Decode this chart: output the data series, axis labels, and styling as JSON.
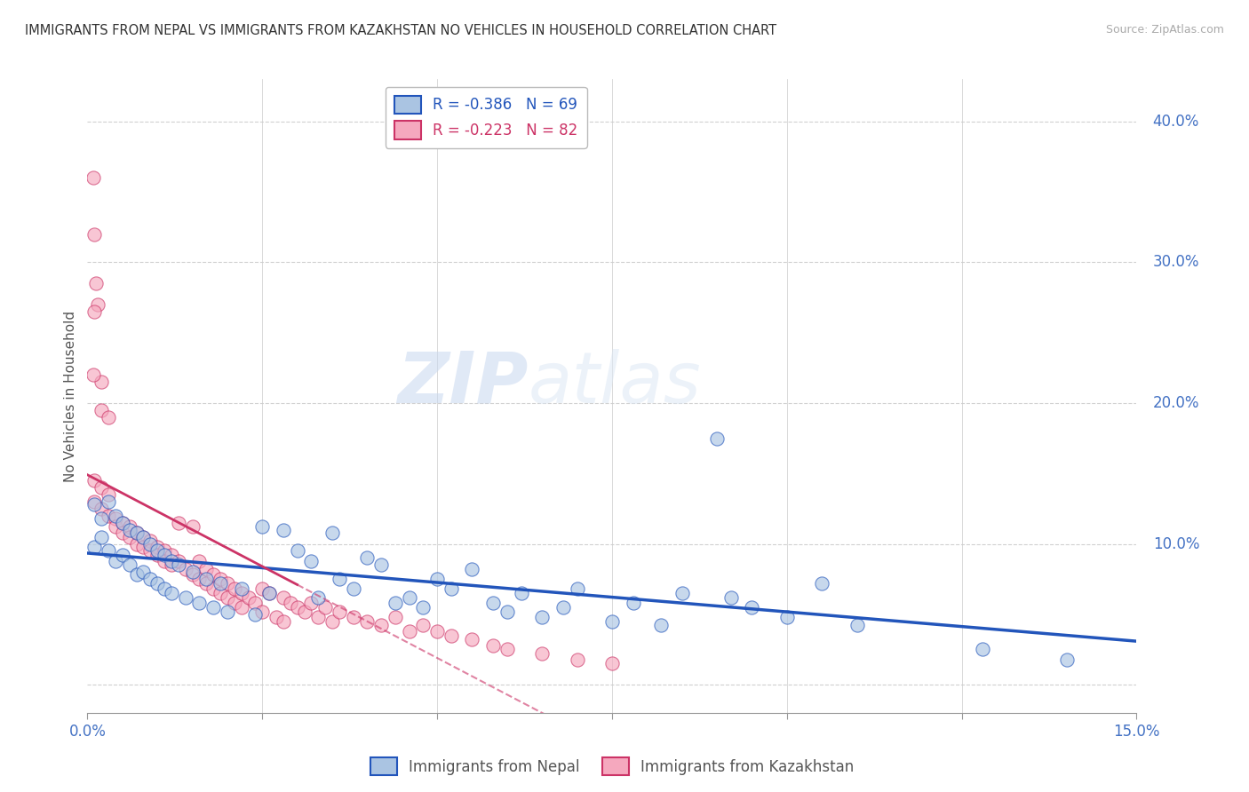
{
  "title": "IMMIGRANTS FROM NEPAL VS IMMIGRANTS FROM KAZAKHSTAN NO VEHICLES IN HOUSEHOLD CORRELATION CHART",
  "source": "Source: ZipAtlas.com",
  "ylabel": "No Vehicles in Household",
  "right_yticklabels": [
    "",
    "10.0%",
    "20.0%",
    "30.0%",
    "40.0%"
  ],
  "right_ytick_vals": [
    0.0,
    0.1,
    0.2,
    0.3,
    0.4
  ],
  "xmin": 0.0,
  "xmax": 0.15,
  "ymin": -0.02,
  "ymax": 0.43,
  "nepal_R": -0.386,
  "nepal_N": 69,
  "kazakh_R": -0.223,
  "kazakh_N": 82,
  "nepal_color": "#aac4e2",
  "kazakh_color": "#f5a8be",
  "nepal_line_color": "#2255bb",
  "kazakh_line_color": "#cc3366",
  "nepal_scatter": [
    [
      0.001,
      0.128
    ],
    [
      0.001,
      0.098
    ],
    [
      0.002,
      0.118
    ],
    [
      0.002,
      0.105
    ],
    [
      0.003,
      0.13
    ],
    [
      0.003,
      0.095
    ],
    [
      0.004,
      0.12
    ],
    [
      0.004,
      0.088
    ],
    [
      0.005,
      0.115
    ],
    [
      0.005,
      0.092
    ],
    [
      0.006,
      0.11
    ],
    [
      0.006,
      0.085
    ],
    [
      0.007,
      0.108
    ],
    [
      0.007,
      0.078
    ],
    [
      0.008,
      0.105
    ],
    [
      0.008,
      0.08
    ],
    [
      0.009,
      0.1
    ],
    [
      0.009,
      0.075
    ],
    [
      0.01,
      0.095
    ],
    [
      0.01,
      0.072
    ],
    [
      0.011,
      0.092
    ],
    [
      0.011,
      0.068
    ],
    [
      0.012,
      0.088
    ],
    [
      0.012,
      0.065
    ],
    [
      0.013,
      0.085
    ],
    [
      0.014,
      0.062
    ],
    [
      0.015,
      0.08
    ],
    [
      0.016,
      0.058
    ],
    [
      0.017,
      0.075
    ],
    [
      0.018,
      0.055
    ],
    [
      0.019,
      0.072
    ],
    [
      0.02,
      0.052
    ],
    [
      0.022,
      0.068
    ],
    [
      0.024,
      0.05
    ],
    [
      0.025,
      0.112
    ],
    [
      0.026,
      0.065
    ],
    [
      0.028,
      0.11
    ],
    [
      0.03,
      0.095
    ],
    [
      0.032,
      0.088
    ],
    [
      0.033,
      0.062
    ],
    [
      0.035,
      0.108
    ],
    [
      0.036,
      0.075
    ],
    [
      0.038,
      0.068
    ],
    [
      0.04,
      0.09
    ],
    [
      0.042,
      0.085
    ],
    [
      0.044,
      0.058
    ],
    [
      0.046,
      0.062
    ],
    [
      0.048,
      0.055
    ],
    [
      0.05,
      0.075
    ],
    [
      0.052,
      0.068
    ],
    [
      0.055,
      0.082
    ],
    [
      0.058,
      0.058
    ],
    [
      0.06,
      0.052
    ],
    [
      0.062,
      0.065
    ],
    [
      0.065,
      0.048
    ],
    [
      0.068,
      0.055
    ],
    [
      0.07,
      0.068
    ],
    [
      0.075,
      0.045
    ],
    [
      0.078,
      0.058
    ],
    [
      0.082,
      0.042
    ],
    [
      0.085,
      0.065
    ],
    [
      0.09,
      0.175
    ],
    [
      0.092,
      0.062
    ],
    [
      0.095,
      0.055
    ],
    [
      0.1,
      0.048
    ],
    [
      0.105,
      0.072
    ],
    [
      0.11,
      0.042
    ],
    [
      0.128,
      0.025
    ],
    [
      0.14,
      0.018
    ]
  ],
  "kazakh_scatter": [
    [
      0.0008,
      0.36
    ],
    [
      0.001,
      0.32
    ],
    [
      0.0012,
      0.285
    ],
    [
      0.0015,
      0.27
    ],
    [
      0.001,
      0.265
    ],
    [
      0.002,
      0.215
    ],
    [
      0.002,
      0.195
    ],
    [
      0.0008,
      0.22
    ],
    [
      0.003,
      0.19
    ],
    [
      0.001,
      0.145
    ],
    [
      0.002,
      0.14
    ],
    [
      0.003,
      0.135
    ],
    [
      0.001,
      0.13
    ],
    [
      0.002,
      0.125
    ],
    [
      0.003,
      0.12
    ],
    [
      0.004,
      0.118
    ],
    [
      0.004,
      0.112
    ],
    [
      0.005,
      0.115
    ],
    [
      0.005,
      0.108
    ],
    [
      0.006,
      0.112
    ],
    [
      0.006,
      0.105
    ],
    [
      0.007,
      0.108
    ],
    [
      0.007,
      0.1
    ],
    [
      0.008,
      0.105
    ],
    [
      0.008,
      0.098
    ],
    [
      0.009,
      0.102
    ],
    [
      0.009,
      0.095
    ],
    [
      0.01,
      0.098
    ],
    [
      0.01,
      0.092
    ],
    [
      0.011,
      0.095
    ],
    [
      0.011,
      0.088
    ],
    [
      0.012,
      0.092
    ],
    [
      0.012,
      0.085
    ],
    [
      0.013,
      0.115
    ],
    [
      0.013,
      0.088
    ],
    [
      0.014,
      0.082
    ],
    [
      0.015,
      0.112
    ],
    [
      0.015,
      0.078
    ],
    [
      0.016,
      0.088
    ],
    [
      0.016,
      0.075
    ],
    [
      0.017,
      0.082
    ],
    [
      0.017,
      0.072
    ],
    [
      0.018,
      0.078
    ],
    [
      0.018,
      0.068
    ],
    [
      0.019,
      0.075
    ],
    [
      0.019,
      0.065
    ],
    [
      0.02,
      0.072
    ],
    [
      0.02,
      0.062
    ],
    [
      0.021,
      0.068
    ],
    [
      0.021,
      0.058
    ],
    [
      0.022,
      0.065
    ],
    [
      0.022,
      0.055
    ],
    [
      0.023,
      0.062
    ],
    [
      0.024,
      0.058
    ],
    [
      0.025,
      0.068
    ],
    [
      0.025,
      0.052
    ],
    [
      0.026,
      0.065
    ],
    [
      0.027,
      0.048
    ],
    [
      0.028,
      0.062
    ],
    [
      0.028,
      0.045
    ],
    [
      0.029,
      0.058
    ],
    [
      0.03,
      0.055
    ],
    [
      0.031,
      0.052
    ],
    [
      0.032,
      0.058
    ],
    [
      0.033,
      0.048
    ],
    [
      0.034,
      0.055
    ],
    [
      0.035,
      0.045
    ],
    [
      0.036,
      0.052
    ],
    [
      0.038,
      0.048
    ],
    [
      0.04,
      0.045
    ],
    [
      0.042,
      0.042
    ],
    [
      0.044,
      0.048
    ],
    [
      0.046,
      0.038
    ],
    [
      0.048,
      0.042
    ],
    [
      0.05,
      0.038
    ],
    [
      0.052,
      0.035
    ],
    [
      0.055,
      0.032
    ],
    [
      0.058,
      0.028
    ],
    [
      0.06,
      0.025
    ],
    [
      0.065,
      0.022
    ],
    [
      0.07,
      0.018
    ],
    [
      0.075,
      0.015
    ]
  ],
  "watermark_zip": "ZIP",
  "watermark_atlas": "atlas",
  "background_color": "#ffffff",
  "grid_color": "#d0d0d0"
}
